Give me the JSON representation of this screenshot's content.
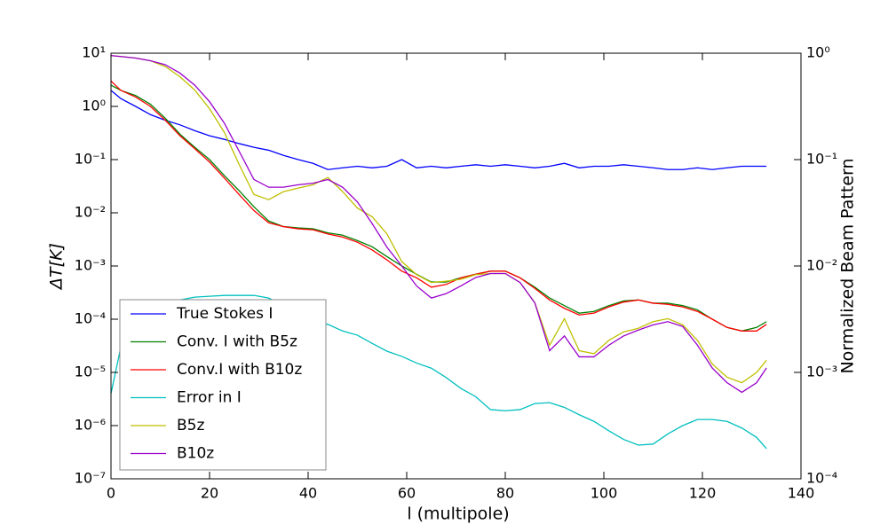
{
  "chart_data": {
    "type": "line",
    "xlabel": "l (multipole)",
    "ylabel": "ΔT[K]",
    "y2label": "Normalized Beam Pattern",
    "xlim": [
      0,
      140
    ],
    "xticks": [
      0,
      20,
      40,
      60,
      80,
      100,
      120,
      140
    ],
    "ylim": [
      1e-07,
      10
    ],
    "ylog": true,
    "yticks": [
      {
        "value": 1e-07,
        "label": "10⁻⁷"
      },
      {
        "value": 1e-06,
        "label": "10⁻⁶"
      },
      {
        "value": 1e-05,
        "label": "10⁻⁵"
      },
      {
        "value": 0.0001,
        "label": "10⁻⁴"
      },
      {
        "value": 0.001,
        "label": "10⁻³"
      },
      {
        "value": 0.01,
        "label": "10⁻²"
      },
      {
        "value": 0.1,
        "label": "10⁻¹"
      },
      {
        "value": 1,
        "label": "10⁰"
      },
      {
        "value": 10,
        "label": "10¹"
      }
    ],
    "y2lim": [
      0.0001,
      1
    ],
    "y2log": true,
    "y2ticks": [
      {
        "value": 0.0001,
        "label": "10⁻⁴"
      },
      {
        "value": 0.001,
        "label": "10⁻³"
      },
      {
        "value": 0.01,
        "label": "10⁻²"
      },
      {
        "value": 0.1,
        "label": "10⁻¹"
      },
      {
        "value": 1,
        "label": "10⁰"
      }
    ],
    "legend": "lower left",
    "x": [
      0,
      2,
      5,
      8,
      11,
      14,
      17,
      20,
      23,
      26,
      29,
      32,
      35,
      38,
      41,
      44,
      47,
      50,
      53,
      56,
      59,
      62,
      65,
      68,
      71,
      74,
      77,
      80,
      83,
      86,
      89,
      92,
      95,
      98,
      101,
      104,
      107,
      110,
      113,
      116,
      119,
      122,
      125,
      128,
      131,
      133
    ],
    "series": [
      {
        "name": "True Stokes I",
        "color": "#0000ff",
        "values": [
          2,
          1.4,
          1.0,
          0.7,
          0.55,
          0.45,
          0.35,
          0.28,
          0.24,
          0.2,
          0.17,
          0.15,
          0.12,
          0.1,
          0.085,
          0.065,
          0.07,
          0.075,
          0.07,
          0.075,
          0.1,
          0.07,
          0.075,
          0.07,
          0.075,
          0.08,
          0.075,
          0.08,
          0.075,
          0.07,
          0.075,
          0.085,
          0.07,
          0.075,
          0.075,
          0.08,
          0.075,
          0.07,
          0.065,
          0.065,
          0.07,
          0.065,
          0.07,
          0.075,
          0.075,
          0.075
        ]
      },
      {
        "name": "Conv. I with B5z",
        "color": "#008000",
        "values": [
          2.5,
          2,
          1.6,
          1.1,
          0.6,
          0.3,
          0.17,
          0.1,
          0.05,
          0.026,
          0.013,
          0.007,
          0.0055,
          0.0052,
          0.005,
          0.0042,
          0.0038,
          0.003,
          0.0023,
          0.0015,
          0.001,
          0.0007,
          0.0005,
          0.0005,
          0.0006,
          0.0007,
          0.0008,
          0.0008,
          0.0006,
          0.0004,
          0.00025,
          0.00018,
          0.00013,
          0.00014,
          0.00018,
          0.00022,
          0.00023,
          0.0002,
          0.0002,
          0.00018,
          0.00015,
          0.0001,
          7e-05,
          6e-05,
          7e-05,
          9e-05
        ]
      },
      {
        "name": "Conv.I with B10z",
        "color": "#ff0000",
        "values": [
          3,
          2,
          1.5,
          1.0,
          0.55,
          0.28,
          0.16,
          0.09,
          0.045,
          0.022,
          0.011,
          0.0065,
          0.0055,
          0.005,
          0.0048,
          0.004,
          0.0035,
          0.0028,
          0.002,
          0.0013,
          0.0008,
          0.0006,
          0.0004,
          0.00045,
          0.0006,
          0.0007,
          0.0008,
          0.0008,
          0.0006,
          0.00038,
          0.00023,
          0.00016,
          0.00012,
          0.00013,
          0.00017,
          0.00021,
          0.00023,
          0.0002,
          0.00019,
          0.00017,
          0.00014,
          0.0001,
          7e-05,
          6e-05,
          6e-05,
          8e-05
        ]
      },
      {
        "name": "Error in I",
        "color": "#00bfbf",
        "values": [
          4e-06,
          3e-05,
          0.0001,
          0.00015,
          0.0002,
          0.00023,
          0.00026,
          0.00027,
          0.00028,
          0.00028,
          0.00028,
          0.00025,
          0.00018,
          0.00012,
          9e-05,
          8e-05,
          6e-05,
          5e-05,
          3.5e-05,
          2.5e-05,
          2e-05,
          1.5e-05,
          1.2e-05,
          8e-06,
          5e-06,
          3.5e-06,
          2e-06,
          1.9e-06,
          2e-06,
          2.6e-06,
          2.7e-06,
          2.2e-06,
          1.6e-06,
          1.2e-06,
          8e-07,
          5.5e-07,
          4.3e-07,
          4.5e-07,
          7e-07,
          1e-06,
          1.3e-06,
          1.3e-06,
          1.2e-06,
          9e-07,
          6e-07,
          3.7e-07
        ]
      },
      {
        "name": "B5z",
        "color": "#bfbf00",
        "axis": "y2",
        "values": [
          0.95,
          0.93,
          0.9,
          0.85,
          0.75,
          0.6,
          0.45,
          0.3,
          0.18,
          0.09,
          0.047,
          0.042,
          0.05,
          0.054,
          0.058,
          0.068,
          0.05,
          0.035,
          0.029,
          0.02,
          0.011,
          0.0083,
          0.007,
          0.0072,
          0.0075,
          0.0083,
          0.0085,
          0.0085,
          0.007,
          0.0045,
          0.0018,
          0.0032,
          0.0016,
          0.0015,
          0.002,
          0.0024,
          0.0026,
          0.003,
          0.0032,
          0.0028,
          0.002,
          0.0012,
          0.0009,
          0.0008,
          0.001,
          0.0013
        ]
      },
      {
        "name": "B10z",
        "color": "#9900cc",
        "axis": "y2",
        "values": [
          0.95,
          0.93,
          0.9,
          0.85,
          0.78,
          0.65,
          0.5,
          0.35,
          0.22,
          0.12,
          0.065,
          0.055,
          0.055,
          0.058,
          0.06,
          0.065,
          0.055,
          0.04,
          0.025,
          0.015,
          0.01,
          0.0065,
          0.005,
          0.0055,
          0.0065,
          0.0078,
          0.0085,
          0.0085,
          0.007,
          0.0045,
          0.0016,
          0.0022,
          0.0014,
          0.0014,
          0.0018,
          0.0022,
          0.0025,
          0.0028,
          0.003,
          0.0027,
          0.0018,
          0.0011,
          0.0008,
          0.00065,
          0.0008,
          0.0011
        ]
      }
    ]
  }
}
